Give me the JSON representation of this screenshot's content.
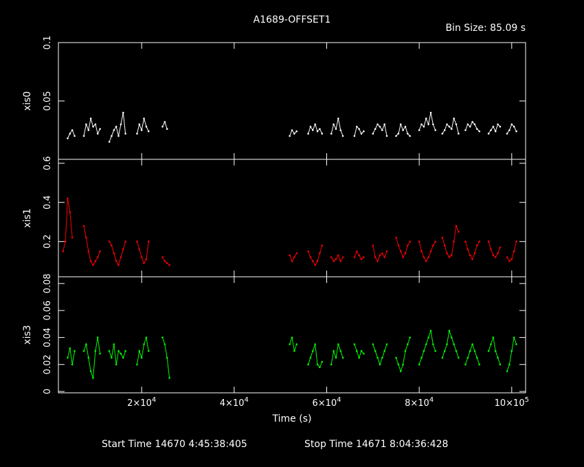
{
  "chart_data": {
    "type": "line",
    "title": "A1689-OFFSET1",
    "bin_size": "Bin Size: 85.09 s",
    "footer": {
      "start": "Start Time 14670  4:45:38:405",
      "stop": "Stop Time 14671  8:04:36:428"
    },
    "xlabel": "Time (s)",
    "xlim": [
      2000,
      103000
    ],
    "x_ticks": [
      {
        "value": 20000,
        "mant": "2",
        "exp": "4"
      },
      {
        "value": 40000,
        "mant": "4",
        "exp": "4"
      },
      {
        "value": 60000,
        "mant": "6",
        "exp": "4"
      },
      {
        "value": 80000,
        "mant": "8",
        "exp": "4"
      },
      {
        "value": 100000,
        "mant": "10",
        "exp": "5"
      }
    ],
    "panels": [
      {
        "name": "xis0",
        "color": "#ffffff",
        "ylim": [
          0,
          0.1
        ],
        "y_ticks": [
          {
            "value": 0.05,
            "label": "0.05"
          },
          {
            "value": 0.1,
            "label": "0.1"
          }
        ],
        "segments": [
          {
            "x": [
              4000,
              4500,
              5000,
              5500
            ],
            "y": [
              0.018,
              0.022,
              0.025,
              0.02
            ]
          },
          {
            "x": [
              7500,
              8000,
              8500,
              9000,
              9500,
              10000,
              10500,
              11000
            ],
            "y": [
              0.02,
              0.03,
              0.025,
              0.035,
              0.028,
              0.03,
              0.022,
              0.026
            ]
          },
          {
            "x": [
              13000,
              13500,
              14000,
              14500,
              15000,
              15500,
              16000,
              16500
            ],
            "y": [
              0.015,
              0.02,
              0.025,
              0.028,
              0.02,
              0.03,
              0.04,
              0.022
            ]
          },
          {
            "x": [
              19000,
              19500,
              20000,
              20500,
              21000,
              21500
            ],
            "y": [
              0.022,
              0.03,
              0.025,
              0.035,
              0.028,
              0.024
            ]
          },
          {
            "x": [
              24500,
              25000,
              25500
            ],
            "y": [
              0.028,
              0.032,
              0.026
            ]
          },
          {
            "x": [
              52000,
              52500,
              53000,
              53500
            ],
            "y": [
              0.02,
              0.025,
              0.022,
              0.024
            ]
          },
          {
            "x": [
              56000,
              56500,
              57000,
              57500,
              58000,
              58500,
              59000
            ],
            "y": [
              0.022,
              0.028,
              0.025,
              0.03,
              0.024,
              0.026,
              0.022
            ]
          },
          {
            "x": [
              61000,
              61500,
              62000,
              62500,
              63000,
              63500
            ],
            "y": [
              0.022,
              0.03,
              0.026,
              0.035,
              0.025,
              0.02
            ]
          },
          {
            "x": [
              66000,
              66500,
              67000,
              67500,
              68000
            ],
            "y": [
              0.02,
              0.028,
              0.026,
              0.022,
              0.024
            ]
          },
          {
            "x": [
              70000,
              70500,
              71000,
              71500,
              72000,
              72500,
              73000
            ],
            "y": [
              0.022,
              0.026,
              0.03,
              0.028,
              0.025,
              0.03,
              0.02
            ]
          },
          {
            "x": [
              75000,
              75500,
              76000,
              76500,
              77000,
              77500,
              78000
            ],
            "y": [
              0.02,
              0.022,
              0.03,
              0.025,
              0.028,
              0.022,
              0.02
            ]
          },
          {
            "x": [
              80000,
              80500,
              81000,
              81500,
              82000,
              82500,
              83000,
              83500
            ],
            "y": [
              0.025,
              0.03,
              0.028,
              0.035,
              0.03,
              0.04,
              0.03,
              0.025
            ]
          },
          {
            "x": [
              85000,
              85500,
              86000,
              86500,
              87000,
              87500,
              88000,
              88500
            ],
            "y": [
              0.022,
              0.025,
              0.03,
              0.028,
              0.026,
              0.035,
              0.03,
              0.022
            ]
          },
          {
            "x": [
              90000,
              90500,
              91000,
              91500,
              92000,
              92500,
              93000
            ],
            "y": [
              0.025,
              0.03,
              0.028,
              0.032,
              0.03,
              0.026,
              0.024
            ]
          },
          {
            "x": [
              95000,
              95500,
              96000,
              96500,
              97000,
              97500
            ],
            "y": [
              0.022,
              0.025,
              0.028,
              0.024,
              0.03,
              0.028
            ]
          },
          {
            "x": [
              99000,
              99500,
              100000,
              100500,
              101000
            ],
            "y": [
              0.022,
              0.025,
              0.03,
              0.028,
              0.024
            ]
          }
        ]
      },
      {
        "name": "xis1",
        "color": "#ff0000",
        "ylim": [
          0.02,
          0.62
        ],
        "y_ticks": [
          {
            "value": 0.2,
            "label": "0.2"
          },
          {
            "value": 0.4,
            "label": "0.4"
          },
          {
            "value": 0.6,
            "label": "0.6"
          }
        ],
        "segments": [
          {
            "x": [
              3000,
              3500,
              4000,
              4500,
              5000
            ],
            "y": [
              0.15,
              0.2,
              0.42,
              0.35,
              0.22
            ]
          },
          {
            "x": [
              7500,
              8000,
              8500,
              9000,
              9500,
              10000,
              10500,
              11000
            ],
            "y": [
              0.28,
              0.22,
              0.15,
              0.1,
              0.08,
              0.1,
              0.12,
              0.15
            ]
          },
          {
            "x": [
              13000,
              13500,
              14000,
              14500,
              15000,
              15500,
              16000,
              16500
            ],
            "y": [
              0.2,
              0.18,
              0.14,
              0.1,
              0.08,
              0.12,
              0.16,
              0.2
            ]
          },
          {
            "x": [
              19000,
              19500,
              20000,
              20500,
              21000,
              21500
            ],
            "y": [
              0.2,
              0.16,
              0.12,
              0.09,
              0.11,
              0.2
            ]
          },
          {
            "x": [
              24500,
              25000,
              25500,
              26000
            ],
            "y": [
              0.12,
              0.1,
              0.09,
              0.08
            ]
          },
          {
            "x": [
              52000,
              52500,
              53000,
              53500
            ],
            "y": [
              0.13,
              0.1,
              0.12,
              0.14
            ]
          },
          {
            "x": [
              56000,
              56500,
              57000,
              57500,
              58000,
              58500,
              59000
            ],
            "y": [
              0.15,
              0.12,
              0.1,
              0.08,
              0.1,
              0.14,
              0.18
            ]
          },
          {
            "x": [
              61000,
              61500,
              62000,
              62500,
              63000,
              63500
            ],
            "y": [
              0.12,
              0.1,
              0.11,
              0.13,
              0.1,
              0.12
            ]
          },
          {
            "x": [
              66000,
              66500,
              67000,
              67500,
              68000
            ],
            "y": [
              0.12,
              0.15,
              0.13,
              0.11,
              0.12
            ]
          },
          {
            "x": [
              70000,
              70500,
              71000,
              71500,
              72000,
              72500,
              73000
            ],
            "y": [
              0.18,
              0.12,
              0.1,
              0.13,
              0.14,
              0.12,
              0.15
            ]
          },
          {
            "x": [
              75000,
              75500,
              76000,
              76500,
              77000,
              77500,
              78000
            ],
            "y": [
              0.22,
              0.18,
              0.15,
              0.12,
              0.14,
              0.18,
              0.2
            ]
          },
          {
            "x": [
              80000,
              80500,
              81000,
              81500,
              82000,
              82500,
              83000,
              83500
            ],
            "y": [
              0.2,
              0.15,
              0.12,
              0.1,
              0.12,
              0.15,
              0.18,
              0.2
            ]
          },
          {
            "x": [
              85000,
              85500,
              86000,
              86500,
              87000,
              87500,
              88000,
              88500
            ],
            "y": [
              0.22,
              0.18,
              0.14,
              0.12,
              0.13,
              0.2,
              0.28,
              0.25
            ]
          },
          {
            "x": [
              90000,
              90500,
              91000,
              91500,
              92000,
              92500,
              93000
            ],
            "y": [
              0.2,
              0.16,
              0.13,
              0.11,
              0.14,
              0.18,
              0.2
            ]
          },
          {
            "x": [
              95000,
              95500,
              96000,
              96500,
              97000,
              97500
            ],
            "y": [
              0.2,
              0.16,
              0.13,
              0.12,
              0.14,
              0.17
            ]
          },
          {
            "x": [
              99000,
              99500,
              100000,
              100500,
              101000
            ],
            "y": [
              0.12,
              0.1,
              0.11,
              0.15,
              0.2
            ]
          }
        ]
      },
      {
        "name": "xis3",
        "color": "#00ff00",
        "ylim": [
          -0.001,
          0.085
        ],
        "y_ticks": [
          {
            "value": 0,
            "label": "0"
          },
          {
            "value": 0.02,
            "label": "0.02"
          },
          {
            "value": 0.04,
            "label": "0.04"
          },
          {
            "value": 0.06,
            "label": "0.06"
          },
          {
            "value": 0.08,
            "label": "0.08"
          }
        ],
        "segments": [
          {
            "x": [
              4000,
              4500,
              5000,
              5500
            ],
            "y": [
              0.025,
              0.032,
              0.02,
              0.03
            ]
          },
          {
            "x": [
              7500,
              8000,
              8500,
              9000,
              9500,
              10000,
              10500,
              11000
            ],
            "y": [
              0.03,
              0.035,
              0.025,
              0.015,
              0.01,
              0.03,
              0.04,
              0.028
            ]
          },
          {
            "x": [
              13000,
              13500,
              14000,
              14500,
              15000,
              15500,
              16000,
              16500
            ],
            "y": [
              0.03,
              0.025,
              0.035,
              0.02,
              0.03,
              0.028,
              0.025,
              0.03
            ]
          },
          {
            "x": [
              19000,
              19500,
              20000,
              20500,
              21000,
              21500
            ],
            "y": [
              0.02,
              0.03,
              0.025,
              0.035,
              0.04,
              0.03
            ]
          },
          {
            "x": [
              24500,
              25000,
              25500,
              26000
            ],
            "y": [
              0.04,
              0.035,
              0.025,
              0.01
            ]
          },
          {
            "x": [
              52000,
              52500,
              53000,
              53500
            ],
            "y": [
              0.035,
              0.04,
              0.03,
              0.035
            ]
          },
          {
            "x": [
              56000,
              56500,
              57000,
              57500,
              58000,
              58500,
              59000
            ],
            "y": [
              0.02,
              0.025,
              0.03,
              0.035,
              0.02,
              0.018,
              0.022
            ]
          },
          {
            "x": [
              61000,
              61500,
              62000,
              62500,
              63000,
              63500
            ],
            "y": [
              0.02,
              0.03,
              0.025,
              0.035,
              0.03,
              0.025
            ]
          },
          {
            "x": [
              66000,
              66500,
              67000,
              67500,
              68000
            ],
            "y": [
              0.035,
              0.03,
              0.025,
              0.03,
              0.028
            ]
          },
          {
            "x": [
              70000,
              70500,
              71000,
              71500,
              72000,
              72500,
              73000
            ],
            "y": [
              0.035,
              0.03,
              0.025,
              0.02,
              0.025,
              0.03,
              0.035
            ]
          },
          {
            "x": [
              75000,
              75500,
              76000,
              76500,
              77000,
              77500,
              78000
            ],
            "y": [
              0.025,
              0.02,
              0.015,
              0.02,
              0.03,
              0.035,
              0.04
            ]
          },
          {
            "x": [
              80000,
              80500,
              81000,
              81500,
              82000,
              82500,
              83000,
              83500
            ],
            "y": [
              0.02,
              0.025,
              0.03,
              0.035,
              0.04,
              0.045,
              0.035,
              0.03
            ]
          },
          {
            "x": [
              85000,
              85500,
              86000,
              86500,
              87000,
              87500,
              88000,
              88500
            ],
            "y": [
              0.025,
              0.03,
              0.035,
              0.045,
              0.04,
              0.035,
              0.03,
              0.025
            ]
          },
          {
            "x": [
              90000,
              90500,
              91000,
              91500,
              92000,
              92500,
              93000
            ],
            "y": [
              0.02,
              0.025,
              0.03,
              0.035,
              0.03,
              0.025,
              0.02
            ]
          },
          {
            "x": [
              95000,
              95500,
              96000,
              96500,
              97000,
              97500
            ],
            "y": [
              0.03,
              0.035,
              0.04,
              0.03,
              0.025,
              0.02
            ]
          },
          {
            "x": [
              99000,
              99500,
              100000,
              100500,
              101000
            ],
            "y": [
              0.015,
              0.02,
              0.03,
              0.04,
              0.035
            ]
          }
        ]
      }
    ]
  }
}
